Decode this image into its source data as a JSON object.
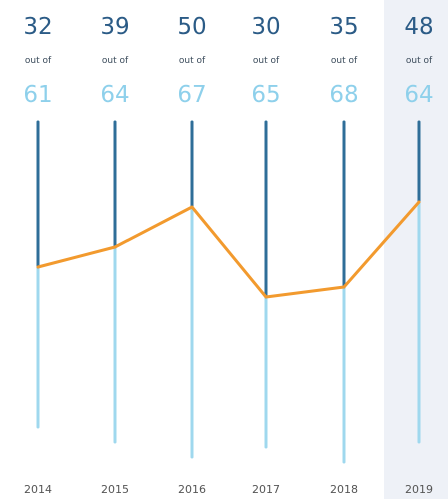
{
  "chart_data": {
    "type": "line",
    "years": [
      "2014",
      "2015",
      "2016",
      "2017",
      "2018",
      "2019"
    ],
    "scored": [
      32,
      39,
      50,
      30,
      35,
      48
    ],
    "totals": [
      61,
      64,
      67,
      65,
      68,
      64
    ],
    "out_of_label": "out of",
    "highlighted_year": "2019",
    "colors": {
      "scored_bar": "#2f6e98",
      "total_bar": "#9fd8ee",
      "line": "#f29a2e",
      "scored_text": "#2b5b86",
      "total_text": "#8ed0eb",
      "small_text": "#3a4a5a",
      "year_text": "#555555",
      "highlight": "#eef1f7"
    }
  }
}
